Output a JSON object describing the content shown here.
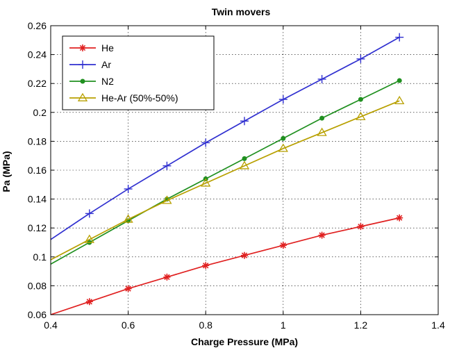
{
  "chart_data": {
    "type": "line",
    "title": "Twin movers",
    "xlabel": "Charge Pressure (MPa)",
    "ylabel": "Pa (MPa)",
    "xlim": [
      0.4,
      1.4
    ],
    "ylim": [
      0.06,
      0.26
    ],
    "xticks": [
      0.4,
      0.6,
      0.8,
      1.0,
      1.2,
      1.4
    ],
    "xtick_labels": [
      "0.4",
      "0.6",
      "0.8",
      "1",
      "1.2",
      "1.4"
    ],
    "yticks": [
      0.06,
      0.08,
      0.1,
      0.12,
      0.14,
      0.16,
      0.18,
      0.2,
      0.22,
      0.24,
      0.26
    ],
    "ytick_labels": [
      "0.06",
      "0.08",
      "0.1",
      "0.12",
      "0.14",
      "0.16",
      "0.18",
      "0.2",
      "0.22",
      "0.24",
      "0.26"
    ],
    "grid": true,
    "legend_position": "top-left",
    "x": [
      0.4,
      0.5,
      0.6,
      0.7,
      0.8,
      0.9,
      1.0,
      1.1,
      1.2,
      1.3
    ],
    "series": [
      {
        "name": "He",
        "color": "#e02020",
        "marker": "asterisk",
        "values": [
          0.06,
          0.069,
          0.078,
          0.086,
          0.094,
          0.101,
          0.108,
          0.115,
          0.121,
          0.127
        ]
      },
      {
        "name": "Ar",
        "color": "#3030d0",
        "marker": "plus",
        "values": [
          0.112,
          0.13,
          0.147,
          0.163,
          0.179,
          0.194,
          0.209,
          0.223,
          0.237,
          0.252
        ]
      },
      {
        "name": "N2",
        "color": "#209020",
        "marker": "dot",
        "values": [
          0.095,
          0.11,
          0.125,
          0.14,
          0.154,
          0.168,
          0.182,
          0.196,
          0.209,
          0.222
        ]
      },
      {
        "name": "He-Ar (50%-50%)",
        "color": "#b8a000",
        "marker": "triangle",
        "values": [
          0.098,
          0.112,
          0.126,
          0.139,
          0.151,
          0.163,
          0.175,
          0.186,
          0.197,
          0.208
        ]
      }
    ]
  }
}
